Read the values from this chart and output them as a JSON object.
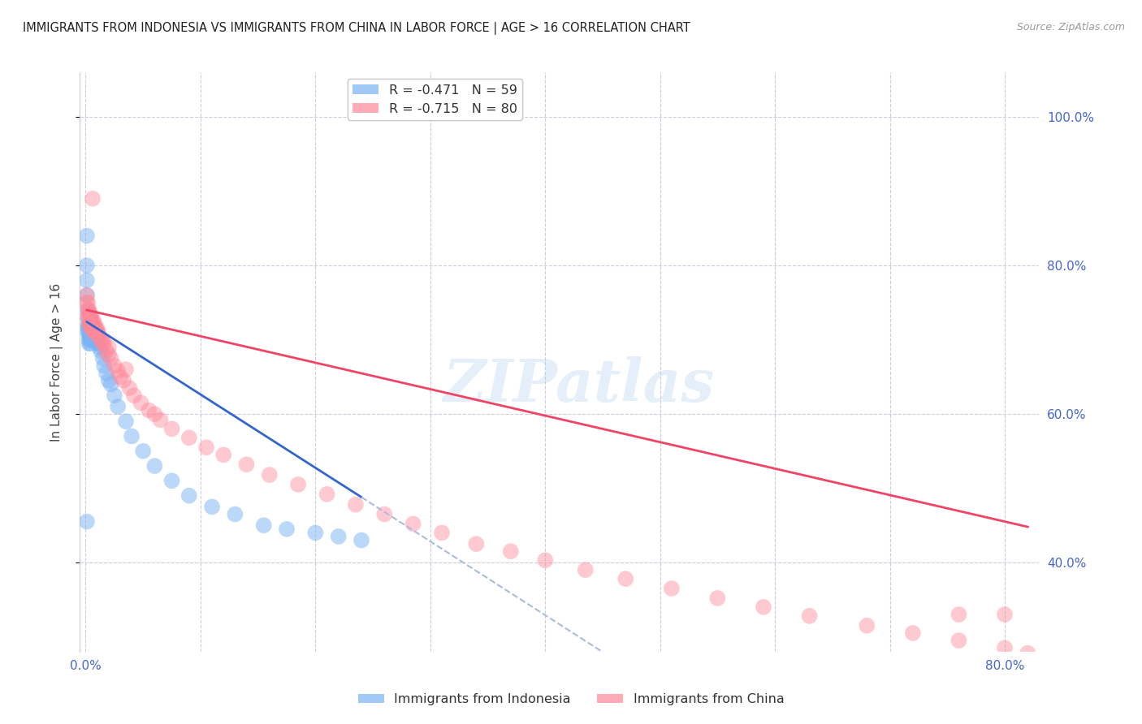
{
  "title": "IMMIGRANTS FROM INDONESIA VS IMMIGRANTS FROM CHINA IN LABOR FORCE | AGE > 16 CORRELATION CHART",
  "source": "Source: ZipAtlas.com",
  "ylabel_left": "In Labor Force | Age > 16",
  "ylabel_right_ticks": [
    0.4,
    0.6,
    0.8,
    1.0
  ],
  "ylabel_right_labels": [
    "40.0%",
    "60.0%",
    "80.0%",
    "100.0%"
  ],
  "xaxis_ticks": [
    0.0,
    0.1,
    0.2,
    0.3,
    0.4,
    0.5,
    0.6,
    0.7,
    0.8
  ],
  "xlim": [
    -0.005,
    0.83
  ],
  "ylim": [
    0.28,
    1.06
  ],
  "legend_entries": [
    {
      "label": "R = -0.471   N = 59",
      "color": "#7ab3f5"
    },
    {
      "label": "R = -0.715   N = 80",
      "color": "#ff8899"
    }
  ],
  "indonesia_scatter": {
    "color": "#7ab3f5",
    "alpha": 0.5,
    "x": [
      0.001,
      0.001,
      0.001,
      0.001,
      0.002,
      0.002,
      0.002,
      0.002,
      0.002,
      0.003,
      0.003,
      0.003,
      0.003,
      0.003,
      0.003,
      0.004,
      0.004,
      0.004,
      0.004,
      0.004,
      0.004,
      0.005,
      0.005,
      0.005,
      0.005,
      0.006,
      0.006,
      0.006,
      0.007,
      0.007,
      0.007,
      0.008,
      0.009,
      0.01,
      0.01,
      0.011,
      0.012,
      0.013,
      0.015,
      0.016,
      0.018,
      0.02,
      0.022,
      0.025,
      0.028,
      0.035,
      0.04,
      0.05,
      0.06,
      0.075,
      0.09,
      0.11,
      0.13,
      0.155,
      0.175,
      0.2,
      0.22,
      0.24,
      0.001
    ],
    "y": [
      0.84,
      0.8,
      0.78,
      0.76,
      0.74,
      0.73,
      0.72,
      0.715,
      0.71,
      0.72,
      0.715,
      0.71,
      0.705,
      0.7,
      0.695,
      0.72,
      0.715,
      0.71,
      0.705,
      0.7,
      0.695,
      0.715,
      0.71,
      0.705,
      0.7,
      0.715,
      0.71,
      0.705,
      0.71,
      0.705,
      0.7,
      0.705,
      0.7,
      0.7,
      0.695,
      0.695,
      0.69,
      0.685,
      0.675,
      0.665,
      0.655,
      0.645,
      0.64,
      0.625,
      0.61,
      0.59,
      0.57,
      0.55,
      0.53,
      0.51,
      0.49,
      0.475,
      0.465,
      0.45,
      0.445,
      0.44,
      0.435,
      0.43,
      0.455
    ]
  },
  "china_scatter": {
    "color": "#ff8899",
    "alpha": 0.45,
    "x": [
      0.001,
      0.001,
      0.002,
      0.002,
      0.002,
      0.003,
      0.003,
      0.003,
      0.003,
      0.004,
      0.004,
      0.004,
      0.004,
      0.005,
      0.005,
      0.005,
      0.005,
      0.006,
      0.006,
      0.006,
      0.007,
      0.007,
      0.007,
      0.007,
      0.008,
      0.008,
      0.009,
      0.009,
      0.01,
      0.01,
      0.011,
      0.012,
      0.013,
      0.014,
      0.015,
      0.016,
      0.018,
      0.02,
      0.022,
      0.025,
      0.028,
      0.03,
      0.033,
      0.038,
      0.042,
      0.048,
      0.055,
      0.065,
      0.075,
      0.09,
      0.105,
      0.12,
      0.14,
      0.16,
      0.185,
      0.21,
      0.235,
      0.26,
      0.285,
      0.31,
      0.34,
      0.37,
      0.4,
      0.435,
      0.47,
      0.51,
      0.55,
      0.59,
      0.63,
      0.68,
      0.72,
      0.76,
      0.8,
      0.82,
      0.006,
      0.02,
      0.035,
      0.06,
      0.76,
      0.8
    ],
    "y": [
      0.76,
      0.75,
      0.75,
      0.74,
      0.73,
      0.74,
      0.735,
      0.73,
      0.72,
      0.735,
      0.73,
      0.725,
      0.72,
      0.73,
      0.725,
      0.72,
      0.715,
      0.725,
      0.72,
      0.715,
      0.725,
      0.72,
      0.715,
      0.71,
      0.72,
      0.715,
      0.715,
      0.71,
      0.715,
      0.71,
      0.71,
      0.705,
      0.7,
      0.7,
      0.695,
      0.695,
      0.685,
      0.68,
      0.675,
      0.665,
      0.658,
      0.65,
      0.645,
      0.635,
      0.625,
      0.615,
      0.605,
      0.592,
      0.58,
      0.568,
      0.555,
      0.545,
      0.532,
      0.518,
      0.505,
      0.492,
      0.478,
      0.465,
      0.452,
      0.44,
      0.425,
      0.415,
      0.403,
      0.39,
      0.378,
      0.365,
      0.352,
      0.34,
      0.328,
      0.315,
      0.305,
      0.295,
      0.285,
      0.278,
      0.89,
      0.69,
      0.66,
      0.6,
      0.33,
      0.33
    ]
  },
  "indonesia_regression": {
    "color": "#3366cc",
    "x_start": 0.001,
    "x_end": 0.24,
    "y_start": 0.724,
    "y_end": 0.488
  },
  "indonesia_regression_dashed": {
    "color": "#aabbdd",
    "x_start": 0.24,
    "x_end": 0.54,
    "y_start": 0.488,
    "y_end": 0.19
  },
  "china_regression": {
    "color": "#ee4466",
    "x_start": 0.001,
    "x_end": 0.82,
    "y_start": 0.74,
    "y_end": 0.448
  },
  "watermark_text": "ZIPatlas",
  "watermark_color": "#aaccee",
  "watermark_alpha": 0.3,
  "background_color": "#ffffff",
  "grid_color": "#ccccdd",
  "title_color": "#222222",
  "source_color": "#999999",
  "axis_color": "#4466cc",
  "ylabel_color": "#444444"
}
